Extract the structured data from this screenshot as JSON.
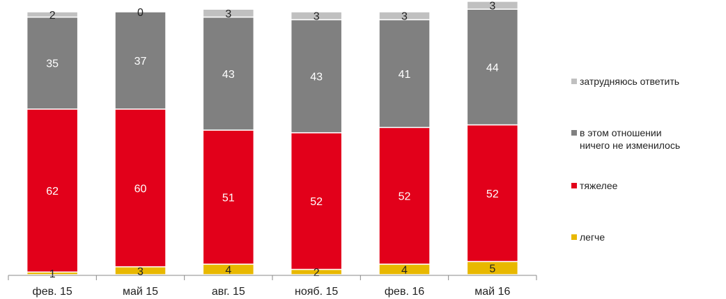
{
  "chart_data": {
    "type": "bar",
    "stacked": true,
    "categories": [
      "фев. 15",
      "май 15",
      "авг. 15",
      "нояб. 15",
      "фев. 16",
      "май 16"
    ],
    "series": [
      {
        "name": "легче",
        "color": "#e8b800",
        "values": [
          1,
          3,
          4,
          2,
          4,
          5
        ]
      },
      {
        "name": "тяжелее",
        "color": "#e2001a",
        "values": [
          62,
          60,
          51,
          52,
          52,
          52
        ]
      },
      {
        "name": "в этом отношении\nничего не изменилось",
        "color": "#808080",
        "values": [
          35,
          37,
          43,
          43,
          41,
          44
        ]
      },
      {
        "name": "затрудняюсь ответить",
        "color": "#c0c0c0",
        "values": [
          2,
          0,
          3,
          3,
          3,
          3
        ]
      }
    ],
    "ylim": [
      0,
      100
    ],
    "grid": false,
    "legend_position": "right"
  }
}
